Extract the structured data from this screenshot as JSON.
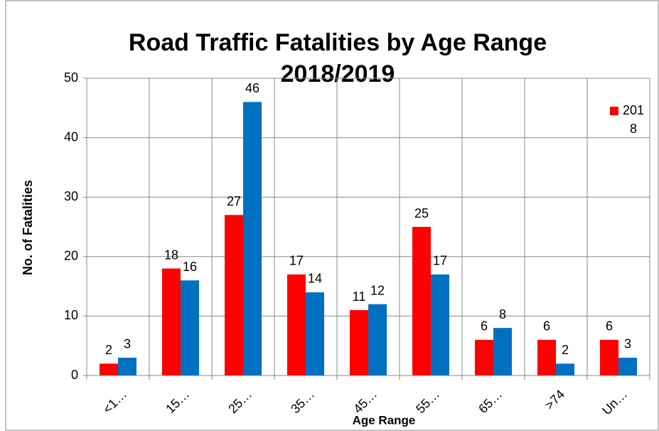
{
  "chart_data": {
    "type": "bar",
    "title": "Road Traffic Fatalities by Age Range 2018/2019",
    "x_label": "Age Range",
    "y_label": "No. of Fatalities",
    "categories": [
      "<1…",
      "15…",
      "25…",
      "35…",
      "45…",
      "55…",
      "65…",
      ">74",
      "Un…"
    ],
    "series": [
      {
        "name": "2018",
        "color": "#ff0000",
        "values": [
          2,
          18,
          27,
          17,
          11,
          25,
          6,
          6,
          6
        ]
      },
      {
        "color": "#0070c0",
        "values": [
          3,
          16,
          46,
          14,
          12,
          17,
          8,
          2,
          3
        ]
      }
    ],
    "ylim": [
      0,
      50
    ],
    "yticks": [
      0,
      10,
      20,
      30,
      40,
      50
    ],
    "grid": true,
    "legend": "right"
  }
}
